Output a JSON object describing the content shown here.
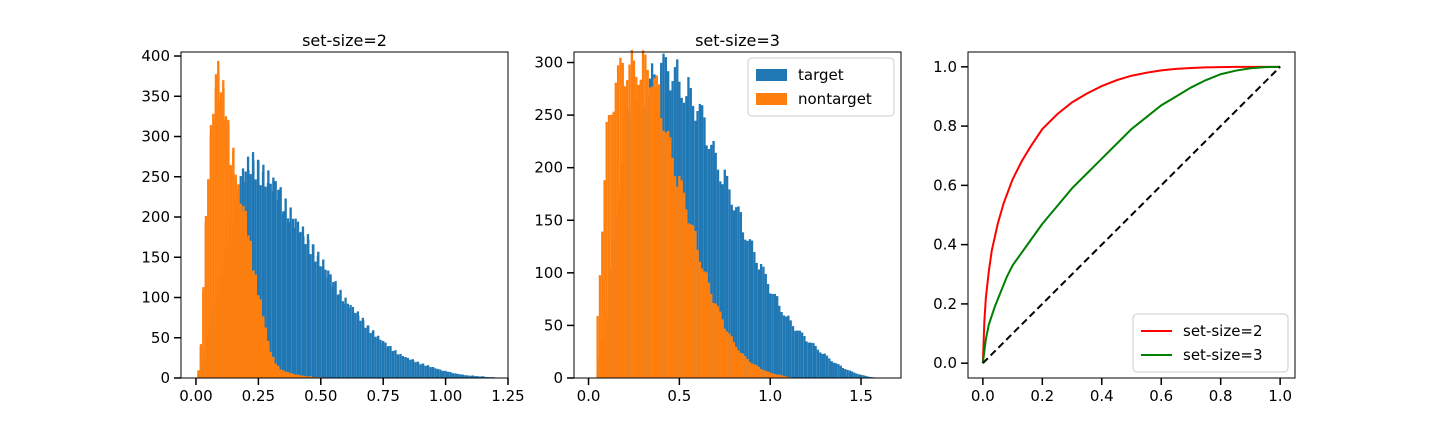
{
  "chart_data": [
    {
      "type": "histogram",
      "title": "set-size=2",
      "xlabel": "",
      "ylabel": "",
      "xlim": [
        -0.06,
        1.25
      ],
      "ylim": [
        0,
        405
      ],
      "xticks": [
        "0.00",
        "0.25",
        "0.50",
        "0.75",
        "1.00",
        "1.25"
      ],
      "yticks": [
        "0",
        "50",
        "100",
        "150",
        "200",
        "250",
        "300",
        "350",
        "400"
      ],
      "bin_width": 0.0093,
      "series": [
        {
          "color": "#1f77b4",
          "bin_centers": [
            0.01,
            0.03,
            0.05,
            0.07,
            0.09,
            0.11,
            0.13,
            0.15,
            0.17,
            0.19,
            0.21,
            0.23,
            0.25,
            0.27,
            0.29,
            0.31,
            0.33,
            0.35,
            0.37,
            0.39,
            0.41,
            0.43,
            0.45,
            0.47,
            0.49,
            0.51,
            0.53,
            0.55,
            0.57,
            0.59,
            0.61,
            0.63,
            0.65,
            0.67,
            0.69,
            0.71,
            0.73,
            0.75,
            0.77,
            0.79,
            0.81,
            0.83,
            0.85,
            0.87,
            0.89,
            0.91,
            0.93,
            0.95,
            0.97,
            0.99,
            1.01,
            1.03,
            1.05,
            1.07,
            1.09,
            1.11,
            1.13,
            1.15,
            1.17,
            1.19
          ],
          "counts": [
            5,
            20,
            50,
            85,
            110,
            140,
            170,
            200,
            235,
            255,
            262,
            265,
            258,
            250,
            245,
            242,
            235,
            215,
            205,
            198,
            188,
            178,
            168,
            158,
            148,
            140,
            130,
            120,
            108,
            98,
            92,
            85,
            78,
            70,
            62,
            56,
            50,
            45,
            40,
            35,
            30,
            27,
            24,
            22,
            19,
            17,
            15,
            13,
            11,
            9,
            8,
            6,
            5,
            4,
            3,
            3,
            2,
            2,
            1,
            1
          ]
        },
        {
          "color": "#ff7f0e",
          "bin_centers": [
            0.01,
            0.02,
            0.03,
            0.04,
            0.05,
            0.06,
            0.07,
            0.08,
            0.09,
            0.1,
            0.11,
            0.12,
            0.13,
            0.14,
            0.15,
            0.16,
            0.17,
            0.18,
            0.19,
            0.2,
            0.21,
            0.22,
            0.23,
            0.24,
            0.25,
            0.26,
            0.27,
            0.28,
            0.29,
            0.3,
            0.31,
            0.32,
            0.33,
            0.34,
            0.35,
            0.36,
            0.37,
            0.38,
            0.39,
            0.4,
            0.41,
            0.42,
            0.43,
            0.44,
            0.45,
            0.46,
            0.47,
            0.48,
            0.49,
            0.5
          ],
          "counts": [
            10,
            40,
            120,
            190,
            260,
            300,
            330,
            370,
            382,
            360,
            350,
            340,
            300,
            278,
            270,
            260,
            230,
            215,
            210,
            200,
            180,
            160,
            140,
            120,
            108,
            92,
            78,
            60,
            45,
            32,
            25,
            18,
            14,
            11,
            9,
            8,
            7,
            6,
            5,
            4,
            4,
            3,
            3,
            2,
            2,
            2,
            1,
            1,
            1,
            1
          ]
        }
      ]
    },
    {
      "type": "histogram",
      "title": "set-size=3",
      "xlabel": "",
      "ylabel": "",
      "xlim": [
        -0.08,
        1.72
      ],
      "ylim": [
        0,
        310
      ],
      "xticks": [
        "0.0",
        "0.5",
        "1.0",
        "1.5"
      ],
      "yticks": [
        "0",
        "50",
        "100",
        "150",
        "200",
        "250",
        "300"
      ],
      "bin_width": 0.0128,
      "legend": {
        "position": "top-right",
        "entries": [
          "target",
          "nontarget"
        ]
      },
      "series": [
        {
          "name": "target",
          "color": "#1f77b4",
          "bin_centers": [
            0.05,
            0.1,
            0.15,
            0.2,
            0.25,
            0.3,
            0.35,
            0.4,
            0.45,
            0.5,
            0.55,
            0.6,
            0.65,
            0.7,
            0.75,
            0.8,
            0.85,
            0.9,
            0.95,
            1.0,
            1.05,
            1.1,
            1.15,
            1.2,
            1.25,
            1.3,
            1.35,
            1.4,
            1.45,
            1.5,
            1.55
          ],
          "counts": [
            5,
            60,
            150,
            235,
            260,
            270,
            285,
            292,
            290,
            285,
            270,
            255,
            235,
            210,
            188,
            165,
            145,
            125,
            105,
            85,
            70,
            56,
            45,
            37,
            30,
            22,
            15,
            10,
            6,
            3,
            1
          ]
        },
        {
          "name": "nontarget",
          "color": "#ff7f0e",
          "bin_centers": [
            0.05,
            0.1,
            0.15,
            0.2,
            0.25,
            0.3,
            0.35,
            0.4,
            0.45,
            0.5,
            0.55,
            0.6,
            0.65,
            0.7,
            0.75,
            0.8,
            0.85,
            0.9,
            0.95,
            1.0,
            1.05,
            1.1
          ],
          "counts": [
            60,
            230,
            280,
            295,
            298,
            295,
            285,
            260,
            220,
            185,
            155,
            125,
            95,
            70,
            50,
            34,
            22,
            14,
            9,
            5,
            3,
            1
          ]
        }
      ]
    },
    {
      "type": "line",
      "title": "",
      "xlabel": "",
      "ylabel": "",
      "xlim": [
        -0.05,
        1.05
      ],
      "ylim": [
        -0.05,
        1.05
      ],
      "xticks": [
        "0.0",
        "0.2",
        "0.4",
        "0.6",
        "0.8",
        "1.0"
      ],
      "yticks": [
        "0.0",
        "0.2",
        "0.4",
        "0.6",
        "0.8",
        "1.0"
      ],
      "legend": {
        "position": "bottom-right",
        "entries": [
          "set-size=2",
          "set-size=3"
        ]
      },
      "series": [
        {
          "name": "set-size=2",
          "color": "#ff0000",
          "x": [
            0,
            0.005,
            0.01,
            0.02,
            0.03,
            0.05,
            0.07,
            0.1,
            0.13,
            0.16,
            0.2,
            0.25,
            0.3,
            0.35,
            0.4,
            0.45,
            0.5,
            0.55,
            0.6,
            0.65,
            0.7,
            0.75,
            0.8,
            0.85,
            0.9,
            0.95,
            1.0
          ],
          "y": [
            0,
            0.14,
            0.22,
            0.31,
            0.38,
            0.47,
            0.54,
            0.62,
            0.68,
            0.73,
            0.79,
            0.84,
            0.88,
            0.91,
            0.935,
            0.955,
            0.97,
            0.98,
            0.988,
            0.993,
            0.996,
            0.998,
            0.999,
            1,
            1,
            1,
            1
          ]
        },
        {
          "name": "set-size=3",
          "color": "#008000",
          "x": [
            0,
            0.01,
            0.02,
            0.04,
            0.06,
            0.08,
            0.1,
            0.15,
            0.2,
            0.25,
            0.3,
            0.35,
            0.4,
            0.45,
            0.5,
            0.55,
            0.6,
            0.65,
            0.7,
            0.75,
            0.8,
            0.85,
            0.9,
            0.95,
            1.0
          ],
          "y": [
            0,
            0.08,
            0.13,
            0.19,
            0.24,
            0.29,
            0.33,
            0.4,
            0.47,
            0.53,
            0.59,
            0.64,
            0.69,
            0.74,
            0.79,
            0.83,
            0.87,
            0.9,
            0.93,
            0.955,
            0.975,
            0.987,
            0.995,
            0.999,
            1
          ]
        },
        {
          "name": "",
          "color": "#000000",
          "dashed": true,
          "x": [
            0,
            1
          ],
          "y": [
            0,
            1
          ]
        }
      ]
    }
  ]
}
